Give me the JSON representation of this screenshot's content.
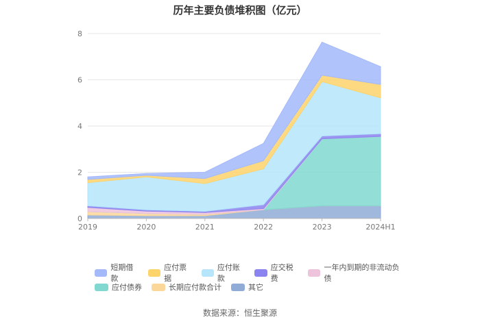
{
  "chart_data": {
    "type": "area",
    "title": "历年主要负债堆积图（亿元）",
    "stacked": true,
    "categories": [
      "2019",
      "2020",
      "2021",
      "2022",
      "2023",
      "2024H1"
    ],
    "ylim": [
      0,
      8
    ],
    "yticks": [
      "0",
      "2",
      "4",
      "6",
      "8"
    ],
    "grid": true,
    "legend_position": "bottom",
    "series": [
      {
        "name": "其它",
        "color": "#8fabd6",
        "values": [
          0.15,
          0.12,
          0.12,
          0.38,
          0.55,
          0.55
        ]
      },
      {
        "name": "长期应付款合计",
        "color": "#fbd79a",
        "values": [
          0.15,
          0.1,
          0.06,
          0.0,
          0.0,
          0.0
        ]
      },
      {
        "name": "应付债券",
        "color": "#80d8d0",
        "values": [
          0.0,
          0.0,
          0.0,
          0.0,
          2.9,
          3.0
        ]
      },
      {
        "name": "一年内到期的非流动负债",
        "color": "#eec3dc",
        "values": [
          0.18,
          0.1,
          0.08,
          0.05,
          0.0,
          0.0
        ]
      },
      {
        "name": "应交税费",
        "color": "#8b84f0",
        "values": [
          0.07,
          0.06,
          0.05,
          0.17,
          0.12,
          0.12
        ]
      },
      {
        "name": "应付账款",
        "color": "#b5e6fb",
        "values": [
          1.0,
          1.42,
          1.2,
          1.55,
          2.35,
          1.55
        ]
      },
      {
        "name": "应付票据",
        "color": "#fdd36c",
        "values": [
          0.14,
          0.07,
          0.22,
          0.35,
          0.28,
          0.58
        ]
      },
      {
        "name": "短期借款",
        "color": "#a3b9fa",
        "values": [
          0.11,
          0.08,
          0.27,
          0.75,
          1.43,
          0.77
        ]
      }
    ]
  },
  "legend": {
    "row1": [
      "短期借款",
      "应付票据",
      "应付账款",
      "应交税费",
      "一年内到期的非流动负债"
    ],
    "row2": [
      "应付债券",
      "长期应付款合计",
      "其它"
    ]
  },
  "source": "数据来源：恒生聚源"
}
